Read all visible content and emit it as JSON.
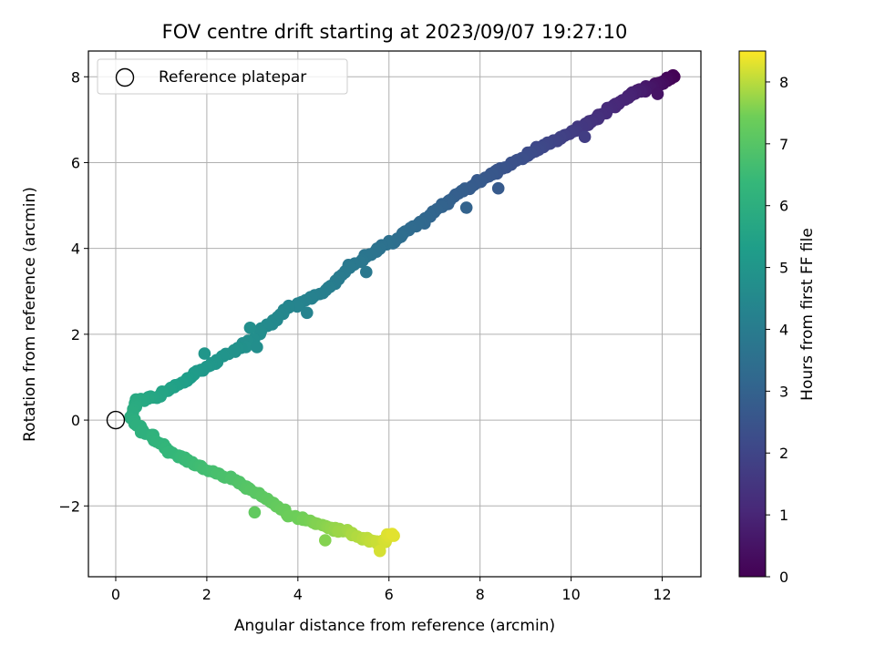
{
  "chart_data": {
    "type": "scatter",
    "title": "FOV centre drift starting at 2023/09/07 19:27:10",
    "xlabel": "Angular distance from reference (arcmin)",
    "ylabel": "Rotation from reference (arcmin)",
    "xlim": [
      -0.6,
      12.85
    ],
    "ylim": [
      -3.65,
      8.6
    ],
    "xticks": [
      0,
      2,
      4,
      6,
      8,
      10,
      12
    ],
    "yticks": [
      -2,
      0,
      2,
      4,
      6,
      8
    ],
    "xtick_labels": [
      "0",
      "2",
      "4",
      "6",
      "8",
      "10",
      "12"
    ],
    "ytick_labels": [
      "−2",
      "0",
      "2",
      "4",
      "6",
      "8"
    ],
    "grid": true,
    "legend": {
      "placement": "top-left",
      "entries": [
        {
          "label": "Reference platepar",
          "marker": "open-circle"
        }
      ]
    },
    "reference_point": {
      "x": 0,
      "y": 0
    },
    "colorbar": {
      "label": "Hours from first FF file",
      "colormap": "viridis",
      "range": [
        0,
        8.5
      ],
      "ticks": [
        0,
        1,
        2,
        3,
        4,
        5,
        6,
        7,
        8
      ]
    },
    "path_points": [
      {
        "x": 12.25,
        "y": 8.02,
        "h": 0.0
      },
      {
        "x": 11.9,
        "y": 7.8,
        "h": 0.4
      },
      {
        "x": 11.3,
        "y": 7.6,
        "h": 0.9
      },
      {
        "x": 10.6,
        "y": 7.05,
        "h": 1.3
      },
      {
        "x": 10.0,
        "y": 6.7,
        "h": 1.7
      },
      {
        "x": 9.5,
        "y": 6.45,
        "h": 2.0
      },
      {
        "x": 8.9,
        "y": 6.1,
        "h": 2.3
      },
      {
        "x": 8.2,
        "y": 5.7,
        "h": 2.6
      },
      {
        "x": 7.4,
        "y": 5.2,
        "h": 2.9
      },
      {
        "x": 6.8,
        "y": 4.7,
        "h": 3.15
      },
      {
        "x": 6.3,
        "y": 4.3,
        "h": 3.4
      },
      {
        "x": 5.8,
        "y": 4.0,
        "h": 3.6
      },
      {
        "x": 5.2,
        "y": 3.6,
        "h": 3.85
      },
      {
        "x": 4.6,
        "y": 3.0,
        "h": 4.1
      },
      {
        "x": 3.7,
        "y": 2.55,
        "h": 4.4
      },
      {
        "x": 3.0,
        "y": 1.85,
        "h": 4.7
      },
      {
        "x": 2.0,
        "y": 1.25,
        "h": 5.05
      },
      {
        "x": 1.4,
        "y": 0.85,
        "h": 5.35
      },
      {
        "x": 0.9,
        "y": 0.55,
        "h": 5.6
      },
      {
        "x": 0.45,
        "y": 0.45,
        "h": 5.8
      },
      {
        "x": 0.35,
        "y": 0.0,
        "h": 5.95
      },
      {
        "x": 0.7,
        "y": -0.3,
        "h": 6.1
      },
      {
        "x": 1.3,
        "y": -0.8,
        "h": 6.35
      },
      {
        "x": 1.9,
        "y": -1.1,
        "h": 6.6
      },
      {
        "x": 2.6,
        "y": -1.4,
        "h": 6.85
      },
      {
        "x": 3.2,
        "y": -1.75,
        "h": 7.1
      },
      {
        "x": 3.8,
        "y": -2.2,
        "h": 7.35
      },
      {
        "x": 4.5,
        "y": -2.45,
        "h": 7.6
      },
      {
        "x": 5.0,
        "y": -2.6,
        "h": 7.8
      },
      {
        "x": 5.5,
        "y": -2.8,
        "h": 8.0
      },
      {
        "x": 5.85,
        "y": -2.85,
        "h": 8.15
      },
      {
        "x": 6.1,
        "y": -2.65,
        "h": 8.3
      }
    ],
    "notable_points": [
      {
        "x": 2.95,
        "y": 2.15,
        "h": 4.75
      },
      {
        "x": 1.95,
        "y": 1.55,
        "h": 5.0
      },
      {
        "x": 5.5,
        "y": 3.45,
        "h": 3.85
      },
      {
        "x": 7.7,
        "y": 4.95,
        "h": 3.0
      },
      {
        "x": 8.4,
        "y": 5.4,
        "h": 2.7
      },
      {
        "x": 10.3,
        "y": 6.6,
        "h": 1.75
      },
      {
        "x": 11.9,
        "y": 7.6,
        "h": 0.5
      },
      {
        "x": 3.05,
        "y": -2.15,
        "h": 7.2
      },
      {
        "x": 4.6,
        "y": -2.8,
        "h": 7.6
      },
      {
        "x": 5.8,
        "y": -3.05,
        "h": 8.2
      },
      {
        "x": 3.1,
        "y": 1.7,
        "h": 4.72
      },
      {
        "x": 4.2,
        "y": 2.5,
        "h": 4.3
      }
    ],
    "point_count": 420
  }
}
